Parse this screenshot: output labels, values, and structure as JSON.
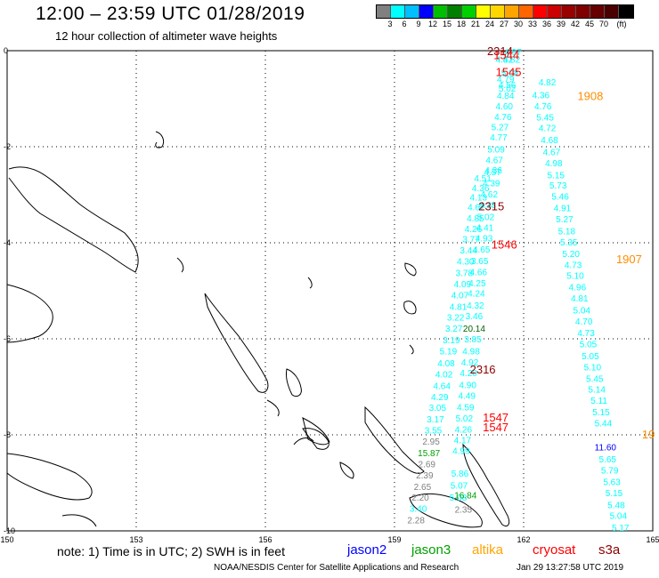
{
  "title": "12:00 – 23:59 UTC 01/28/2019",
  "subtitle": "12 hour collection of altimeter wave heights",
  "legend": {
    "unit": "(ft)",
    "colors": [
      "#808080",
      "#00ffff",
      "#00bfff",
      "#0000ff",
      "#00bf00",
      "#008000",
      "#00cf00",
      "#ffff00",
      "#ffd700",
      "#ffa500",
      "#ff6600",
      "#ff0000",
      "#cc0000",
      "#990000",
      "#800000",
      "#660000",
      "#4b0000",
      "#000000"
    ],
    "labels": [
      "3",
      "6",
      "9",
      "12",
      "15",
      "18",
      "21",
      "24",
      "27",
      "30",
      "33",
      "36",
      "39",
      "42",
      "45",
      "70"
    ]
  },
  "axes": {
    "lon_ticks": [
      "150",
      "153",
      "156",
      "159",
      "162",
      "165"
    ],
    "lat_ticks": [
      "0",
      "-2",
      "-4",
      "-6",
      "-8",
      "-10"
    ],
    "lon_range": [
      150,
      165
    ],
    "lat_range": [
      0,
      -10
    ]
  },
  "tracks": [
    {
      "satellite": "s3a",
      "color": "#00ffff",
      "points": [
        {
          "lon": 161.75,
          "lat": -0.02,
          "v": "4.97"
        },
        {
          "lon": 161.72,
          "lat": -0.18,
          "v": "4.82"
        },
        {
          "lon": 161.68,
          "lat": -0.45,
          "v": "5.08"
        },
        {
          "lon": 161.62,
          "lat": -0.7,
          "v": "4.56"
        },
        {
          "lon": 161.58,
          "lat": -0.93,
          "v": "4.84"
        },
        {
          "lon": 161.55,
          "lat": -1.15,
          "v": "4.60"
        },
        {
          "lon": 161.52,
          "lat": -1.37,
          "v": "4.76"
        },
        {
          "lon": 161.45,
          "lat": -1.58,
          "v": "5.27"
        },
        {
          "lon": 161.42,
          "lat": -1.8,
          "v": "4.77"
        },
        {
          "lon": 161.36,
          "lat": -2.05,
          "v": "5.09"
        },
        {
          "lon": 161.32,
          "lat": -2.27,
          "v": "4.67"
        },
        {
          "lon": 161.28,
          "lat": -2.52,
          "v": "4.57"
        },
        {
          "lon": 161.25,
          "lat": -2.75,
          "v": "4.39"
        },
        {
          "lon": 161.2,
          "lat": -2.98,
          "v": "4.62"
        },
        {
          "lon": 161.16,
          "lat": -3.2,
          "v": "4.38"
        },
        {
          "lon": 161.12,
          "lat": -3.45,
          "v": "5.02"
        },
        {
          "lon": 161.1,
          "lat": -3.68,
          "v": "4.41"
        },
        {
          "lon": 161.08,
          "lat": -3.9,
          "v": "4.93"
        },
        {
          "lon": 161.02,
          "lat": -4.13,
          "v": "4.65"
        },
        {
          "lon": 160.98,
          "lat": -4.37,
          "v": "3.65"
        },
        {
          "lon": 160.95,
          "lat": -4.6,
          "v": "4.66"
        },
        {
          "lon": 160.92,
          "lat": -4.83,
          "v": "4.25"
        },
        {
          "lon": 160.9,
          "lat": -5.05,
          "v": "4.24"
        },
        {
          "lon": 160.88,
          "lat": -5.3,
          "v": "4.32"
        },
        {
          "lon": 160.85,
          "lat": -5.52,
          "v": "3.46"
        },
        {
          "lon": 160.82,
          "lat": -6.0,
          "v": "3.85"
        },
        {
          "lon": 160.78,
          "lat": -6.25,
          "v": "4.98"
        },
        {
          "lon": 160.75,
          "lat": -6.48,
          "v": "4.92"
        },
        {
          "lon": 160.72,
          "lat": -6.7,
          "v": "4.20"
        },
        {
          "lon": 160.7,
          "lat": -6.95,
          "v": "4.90"
        },
        {
          "lon": 160.68,
          "lat": -7.18,
          "v": "4.49"
        },
        {
          "lon": 160.65,
          "lat": -7.42,
          "v": "4.59"
        },
        {
          "lon": 160.62,
          "lat": -7.65,
          "v": "5.02"
        },
        {
          "lon": 160.6,
          "lat": -7.88,
          "v": "4.26"
        },
        {
          "lon": 160.58,
          "lat": -8.1,
          "v": "4.17"
        },
        {
          "lon": 160.55,
          "lat": -8.32,
          "v": "4.99"
        },
        {
          "lon": 160.52,
          "lat": -8.8,
          "v": "5.86"
        },
        {
          "lon": 160.5,
          "lat": -9.05,
          "v": "5.07"
        },
        {
          "lon": 160.48,
          "lat": -9.3,
          "v": "5.08"
        }
      ],
      "time_labels": [
        {
          "lon": 161.65,
          "lat": -0.45,
          "v": "1545",
          "color": "#ff0000"
        },
        {
          "lon": 161.55,
          "lat": -4.05,
          "v": "1546",
          "color": "#ff0000"
        },
        {
          "lon": 161.35,
          "lat": -7.65,
          "v": "1547",
          "color": "#ff0000"
        },
        {
          "lon": 161.35,
          "lat": -7.85,
          "v": "1547",
          "color": "#ff0000"
        }
      ]
    },
    {
      "satellite": "altika",
      "color": "#00ffff",
      "points": [
        {
          "lon": 161.55,
          "lat": -0.18,
          "v": "4.82"
        },
        {
          "lon": 161.58,
          "lat": -0.58,
          "v": "4.79"
        },
        {
          "lon": 161.62,
          "lat": -0.78,
          "v": "5.02"
        },
        {
          "lon": 162.55,
          "lat": -0.65,
          "v": "4.82"
        },
        {
          "lon": 162.4,
          "lat": -0.92,
          "v": "4.36"
        },
        {
          "lon": 162.45,
          "lat": -1.15,
          "v": "4.76"
        },
        {
          "lon": 162.5,
          "lat": -1.38,
          "v": "5.45"
        },
        {
          "lon": 162.55,
          "lat": -1.6,
          "v": "4.72"
        },
        {
          "lon": 162.6,
          "lat": -1.85,
          "v": "4.68"
        },
        {
          "lon": 162.65,
          "lat": -2.1,
          "v": "4.67"
        },
        {
          "lon": 162.7,
          "lat": -2.33,
          "v": "4.98"
        },
        {
          "lon": 162.75,
          "lat": -2.58,
          "v": "5.15"
        },
        {
          "lon": 162.8,
          "lat": -2.8,
          "v": "5.73"
        },
        {
          "lon": 162.85,
          "lat": -3.03,
          "v": "5.46"
        },
        {
          "lon": 162.9,
          "lat": -3.27,
          "v": "4.91"
        },
        {
          "lon": 162.95,
          "lat": -3.5,
          "v": "5.27"
        },
        {
          "lon": 163.0,
          "lat": -3.75,
          "v": "5.18"
        },
        {
          "lon": 163.05,
          "lat": -3.98,
          "v": "5.35"
        },
        {
          "lon": 163.1,
          "lat": -4.22,
          "v": "5.20"
        },
        {
          "lon": 163.15,
          "lat": -4.45,
          "v": "4.73"
        },
        {
          "lon": 163.2,
          "lat": -4.68,
          "v": "5.10"
        },
        {
          "lon": 163.25,
          "lat": -4.92,
          "v": "4.96"
        },
        {
          "lon": 163.3,
          "lat": -5.15,
          "v": "4.81"
        },
        {
          "lon": 163.35,
          "lat": -5.4,
          "v": "5.04"
        },
        {
          "lon": 163.4,
          "lat": -5.63,
          "v": "4.70"
        },
        {
          "lon": 163.45,
          "lat": -5.87,
          "v": "4.73"
        },
        {
          "lon": 163.5,
          "lat": -6.1,
          "v": "5.05"
        },
        {
          "lon": 163.55,
          "lat": -6.35,
          "v": "5.05"
        },
        {
          "lon": 163.6,
          "lat": -6.58,
          "v": "5.10"
        },
        {
          "lon": 163.65,
          "lat": -6.82,
          "v": "5.45"
        },
        {
          "lon": 163.7,
          "lat": -7.05,
          "v": "5.14"
        },
        {
          "lon": 163.75,
          "lat": -7.28,
          "v": "5.11"
        },
        {
          "lon": 163.8,
          "lat": -7.52,
          "v": "5.15"
        },
        {
          "lon": 163.85,
          "lat": -7.75,
          "v": "5.44"
        },
        {
          "lon": 163.9,
          "lat": -8.25,
          "v": "11.60",
          "color": "#0000ff"
        },
        {
          "lon": 163.95,
          "lat": -8.5,
          "v": "5.65"
        },
        {
          "lon": 164.0,
          "lat": -8.73,
          "v": "5.79"
        },
        {
          "lon": 164.05,
          "lat": -8.97,
          "v": "5.63"
        },
        {
          "lon": 164.1,
          "lat": -9.2,
          "v": "5.15"
        },
        {
          "lon": 164.15,
          "lat": -9.45,
          "v": "5.48"
        },
        {
          "lon": 164.2,
          "lat": -9.68,
          "v": "5.04"
        },
        {
          "lon": 164.25,
          "lat": -9.93,
          "v": "5.17"
        }
      ],
      "time_labels": [
        {
          "lon": 163.55,
          "lat": -0.95,
          "v": "1908",
          "color": "#ff8c00"
        },
        {
          "lon": 164.45,
          "lat": -4.35,
          "v": "1907",
          "color": "#ff8c00"
        },
        {
          "lon": 164.9,
          "lat": -8.0,
          "v": "19",
          "color": "#ff8c00"
        }
      ]
    },
    {
      "satellite": "cryosat",
      "color": "#00ffff",
      "points": [
        {
          "lon": 161.3,
          "lat": -2.48,
          "v": "4.36"
        },
        {
          "lon": 161.05,
          "lat": -2.65,
          "v": "4.51"
        },
        {
          "lon": 161.0,
          "lat": -2.85,
          "v": "4.36"
        },
        {
          "lon": 160.95,
          "lat": -3.05,
          "v": "4.13"
        },
        {
          "lon": 160.9,
          "lat": -3.25,
          "v": "4.62"
        },
        {
          "lon": 160.88,
          "lat": -3.48,
          "v": "4.85"
        },
        {
          "lon": 160.83,
          "lat": -3.7,
          "v": "4.26"
        },
        {
          "lon": 160.78,
          "lat": -3.92,
          "v": "3.77"
        },
        {
          "lon": 160.72,
          "lat": -4.15,
          "v": "3.44"
        },
        {
          "lon": 160.65,
          "lat": -4.38,
          "v": "4.30"
        },
        {
          "lon": 160.62,
          "lat": -4.62,
          "v": "3.78"
        },
        {
          "lon": 160.58,
          "lat": -4.85,
          "v": "4.09"
        },
        {
          "lon": 160.52,
          "lat": -5.08,
          "v": "4.07"
        },
        {
          "lon": 160.48,
          "lat": -5.32,
          "v": "4.81"
        },
        {
          "lon": 160.42,
          "lat": -5.55,
          "v": "3.22"
        },
        {
          "lon": 160.38,
          "lat": -5.78,
          "v": "3.27"
        },
        {
          "lon": 160.32,
          "lat": -6.02,
          "v": "3.19"
        },
        {
          "lon": 160.25,
          "lat": -6.25,
          "v": "5.19"
        },
        {
          "lon": 160.2,
          "lat": -6.5,
          "v": "4.08"
        },
        {
          "lon": 160.15,
          "lat": -6.73,
          "v": "4.02"
        },
        {
          "lon": 160.1,
          "lat": -6.97,
          "v": "4.64"
        },
        {
          "lon": 160.05,
          "lat": -7.2,
          "v": "4.29"
        },
        {
          "lon": 160.0,
          "lat": -7.43,
          "v": "3.05"
        },
        {
          "lon": 159.95,
          "lat": -7.67,
          "v": "3.17"
        },
        {
          "lon": 159.9,
          "lat": -7.9,
          "v": "3.55"
        },
        {
          "lon": 159.85,
          "lat": -8.13,
          "v": "2.95",
          "color": "#808080"
        },
        {
          "lon": 159.8,
          "lat": -8.37,
          "v": "15.87",
          "color": "#00a000"
        },
        {
          "lon": 159.75,
          "lat": -8.6,
          "v": "2.69",
          "color": "#808080"
        },
        {
          "lon": 159.7,
          "lat": -8.83,
          "v": "2.39",
          "color": "#808080"
        },
        {
          "lon": 159.65,
          "lat": -9.07,
          "v": "2.65",
          "color": "#808080"
        },
        {
          "lon": 159.6,
          "lat": -9.3,
          "v": "2.20",
          "color": "#808080"
        },
        {
          "lon": 159.55,
          "lat": -9.53,
          "v": "3.40"
        },
        {
          "lon": 159.5,
          "lat": -9.77,
          "v": "2.28",
          "color": "#808080"
        }
      ],
      "time_labels": [
        {
          "lon": 161.45,
          "lat": -0.02,
          "v": "2314",
          "color": "#8b0000"
        },
        {
          "lon": 161.25,
          "lat": -3.25,
          "v": "2315",
          "color": "#8b0000"
        },
        {
          "lon": 161.05,
          "lat": -6.65,
          "v": "2316",
          "color": "#8b0000"
        }
      ]
    },
    {
      "satellite": "jason3",
      "color": "#00a000",
      "points": [
        {
          "lon": 160.85,
          "lat": -5.78,
          "v": "20.14",
          "color": "#006400"
        },
        {
          "lon": 160.65,
          "lat": -9.25,
          "v": "16.84",
          "color": "#00a000"
        },
        {
          "lon": 160.6,
          "lat": -9.55,
          "v": "2.35",
          "color": "#808080"
        }
      ],
      "time_labels": [
        {
          "lon": 161.6,
          "lat": -0.1,
          "v": "1544",
          "color": "#ff0000"
        }
      ]
    }
  ],
  "footer": {
    "note": "note:  1) Time is in UTC;  2) SWH is in feet",
    "satellites": [
      {
        "name": "jason2",
        "color": "#0000ff"
      },
      {
        "name": "jason3",
        "color": "#00a000"
      },
      {
        "name": "altika",
        "color": "#ffa500"
      },
      {
        "name": "cryosat",
        "color": "#ff0000"
      },
      {
        "name": "s3a",
        "color": "#8b0000"
      }
    ],
    "credit": "NOAA/NESDIS Center for Satellite Applications and Research",
    "timestamp": "Jan 29 13:27:58 UTC 2019"
  }
}
